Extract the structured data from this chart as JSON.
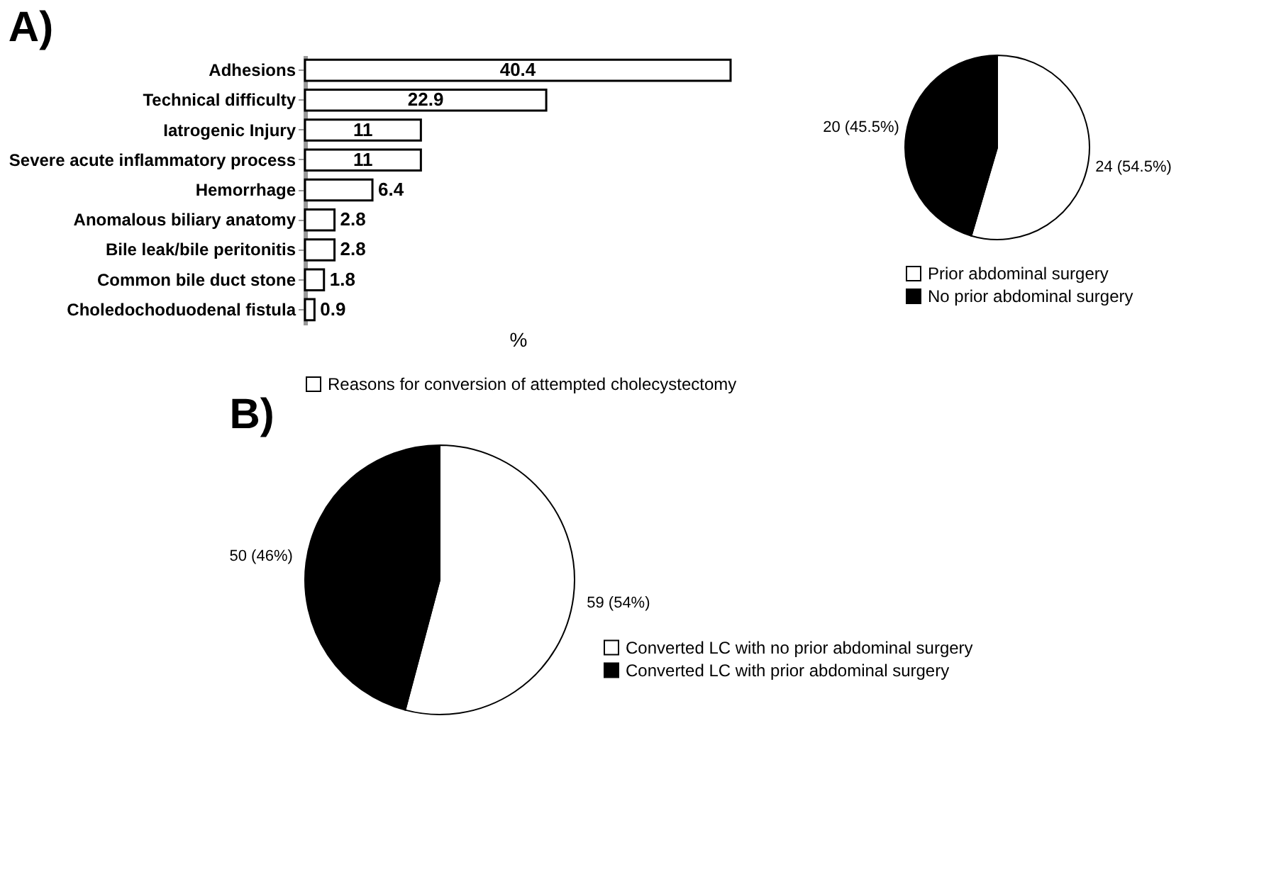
{
  "chart_data": [
    {
      "type": "bar",
      "orientation": "horizontal",
      "title": "A)",
      "xlabel": "%",
      "data_labels": true,
      "legend": "bottom",
      "categories": [
        "Adhesions",
        "Technical difficulty",
        "Iatrogenic Injury",
        "Severe acute inflammatory process",
        "Hemorrhage",
        "Anomalous biliary anatomy",
        "Bile leak/bile peritonitis",
        "Common bile duct stone",
        "Choledochoduodenal fistula"
      ],
      "series": [
        {
          "name": "Reasons for conversion of attempted cholecystectomy",
          "color": "#ffffff",
          "values": [
            40.4,
            22.9,
            11,
            11,
            6.4,
            2.8,
            2.8,
            1.8,
            0.9
          ]
        }
      ]
    },
    {
      "type": "pie",
      "legend": "bottom",
      "categories": [
        "Prior abdominal surgery",
        "No prior abdominal surgery"
      ],
      "values": [
        24,
        20
      ],
      "colors": [
        "#ffffff",
        "#000000"
      ],
      "value_labels": [
        "24 (54.5%)",
        "20 (45.5%)"
      ]
    },
    {
      "type": "pie",
      "title": "B)",
      "legend": "bottom right",
      "categories": [
        "Converted LC with no prior abdominal surgery",
        "Converted LC with prior abdominal surgery"
      ],
      "values": [
        59,
        50
      ],
      "colors": [
        "#ffffff",
        "#000000"
      ],
      "value_labels": [
        "59 (54%)",
        "50 (46%)"
      ]
    }
  ]
}
